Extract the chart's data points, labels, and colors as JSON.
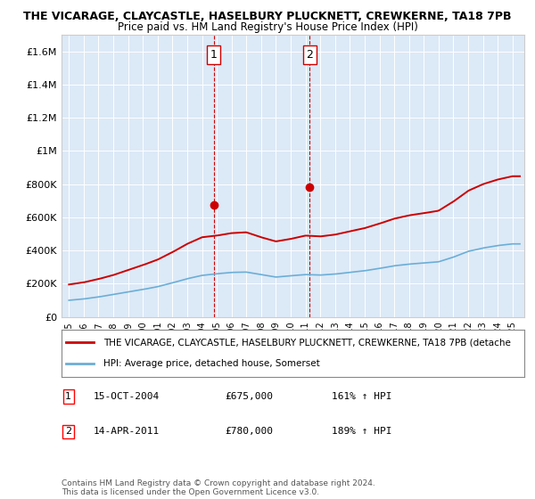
{
  "title_line1": "THE VICARAGE, CLAYCASTLE, HASELBURY PLUCKNETT, CREWKERNE, TA18 7PB",
  "title_line2": "Price paid vs. HM Land Registry's House Price Index (HPI)",
  "background_color": "#dce9f7",
  "hpi_color": "#6baed6",
  "price_color": "#cc0000",
  "vline_color": "#cc0000",
  "ylim": [
    0,
    1700000
  ],
  "yticks": [
    0,
    200000,
    400000,
    600000,
    800000,
    1000000,
    1200000,
    1400000,
    1600000
  ],
  "ytick_labels": [
    "£0",
    "£200K",
    "£400K",
    "£600K",
    "£800K",
    "£1M",
    "£1.2M",
    "£1.4M",
    "£1.6M"
  ],
  "sale1_date": 2004.79,
  "sale1_price": 675000,
  "sale2_date": 2011.28,
  "sale2_price": 780000,
  "legend_line1": "THE VICARAGE, CLAYCASTLE, HASELBURY PLUCKNETT, CREWKERNE, TA18 7PB (detache",
  "legend_line2": "HPI: Average price, detached house, Somerset",
  "footnote": "Contains HM Land Registry data © Crown copyright and database right 2024.\nThis data is licensed under the Open Government Licence v3.0.",
  "table_rows": [
    [
      "1",
      "15-OCT-2004",
      "£675,000",
      "161% ↑ HPI"
    ],
    [
      "2",
      "14-APR-2011",
      "£780,000",
      "189% ↑ HPI"
    ]
  ],
  "years_hpi": [
    1995,
    1996,
    1997,
    1998,
    1999,
    2000,
    2001,
    2002,
    2003,
    2004,
    2005,
    2006,
    2007,
    2008,
    2009,
    2010,
    2011,
    2012,
    2013,
    2014,
    2015,
    2016,
    2017,
    2018,
    2019,
    2020,
    2021,
    2022,
    2023,
    2024,
    2025
  ],
  "hpi_values": [
    100000,
    108000,
    120000,
    135000,
    150000,
    165000,
    182000,
    205000,
    230000,
    250000,
    260000,
    268000,
    270000,
    255000,
    240000,
    248000,
    255000,
    252000,
    258000,
    268000,
    278000,
    292000,
    308000,
    318000,
    325000,
    332000,
    360000,
    395000,
    415000,
    430000,
    440000
  ],
  "red_values": [
    195000,
    208000,
    228000,
    252000,
    282000,
    312000,
    345000,
    390000,
    440000,
    480000,
    490000,
    505000,
    510000,
    480000,
    455000,
    470000,
    490000,
    485000,
    496000,
    516000,
    535000,
    562000,
    592000,
    612000,
    625000,
    640000,
    695000,
    760000,
    800000,
    828000,
    848000
  ]
}
